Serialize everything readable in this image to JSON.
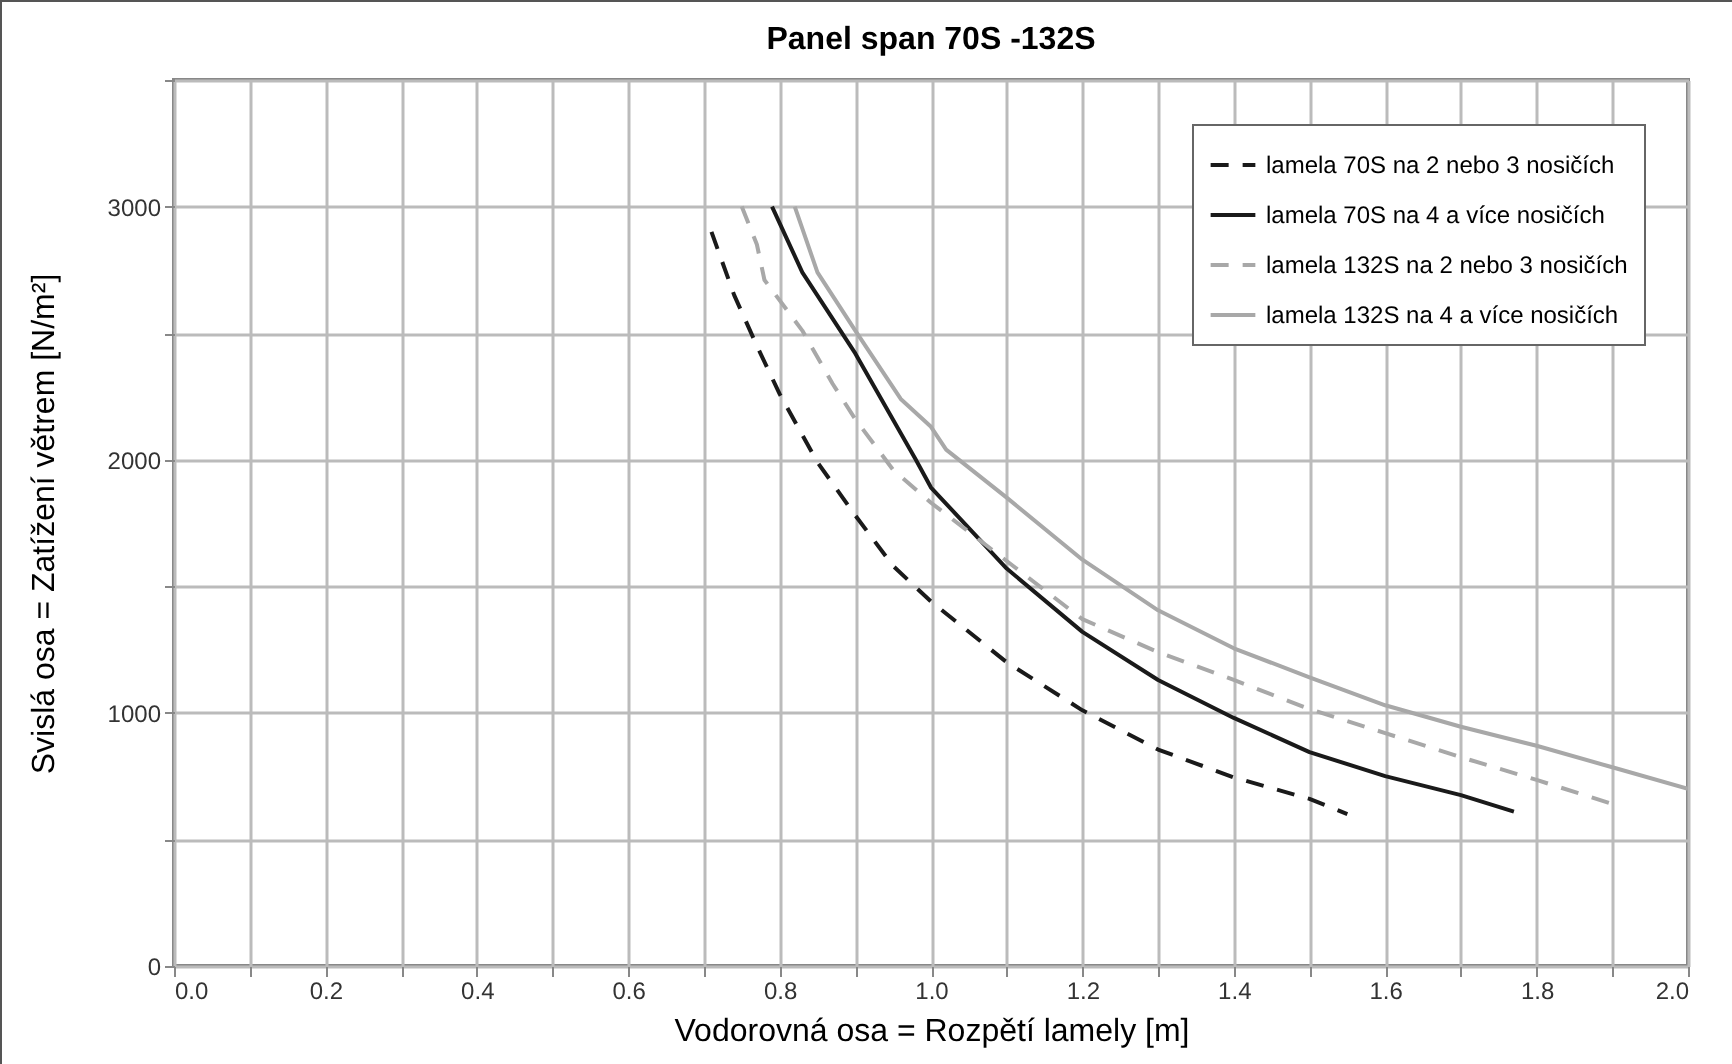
{
  "chart_data": {
    "type": "line",
    "title": "Panel span 70S -132S",
    "xlabel": "Vodorovná osa = Rozpětí lamely [m]",
    "ylabel": "Svislá osa = Zatížení větrem [N/m²]",
    "xlim": [
      0,
      2
    ],
    "ylim": [
      0,
      3500
    ],
    "xticks": [
      {
        "value": 0,
        "label": "0.0"
      },
      {
        "value": 0.1,
        "label": null
      },
      {
        "value": 0.2,
        "label": "0.2"
      },
      {
        "value": 0.3,
        "label": null
      },
      {
        "value": 0.4,
        "label": "0.4"
      },
      {
        "value": 0.5,
        "label": null
      },
      {
        "value": 0.6,
        "label": "0.6"
      },
      {
        "value": 0.7,
        "label": null
      },
      {
        "value": 0.8,
        "label": "0.8"
      },
      {
        "value": 0.9,
        "label": null
      },
      {
        "value": 1,
        "label": "1.0"
      },
      {
        "value": 1.1,
        "label": null
      },
      {
        "value": 1.2,
        "label": "1.2"
      },
      {
        "value": 1.3,
        "label": null
      },
      {
        "value": 1.4,
        "label": "1.4"
      },
      {
        "value": 1.5,
        "label": null
      },
      {
        "value": 1.6,
        "label": "1.6"
      },
      {
        "value": 1.7,
        "label": null
      },
      {
        "value": 1.8,
        "label": "1.8"
      },
      {
        "value": 1.9,
        "label": null
      },
      {
        "value": 2,
        "label": "2.0"
      }
    ],
    "yticks": [
      0,
      {
        "value": 500,
        "label": null
      },
      1000,
      {
        "value": 1500,
        "label": null
      },
      2000,
      {
        "value": 2500,
        "label": null
      },
      3000,
      {
        "value": 3500,
        "label": null
      }
    ],
    "grid": true,
    "legend": "top right",
    "marker": "none",
    "series": [
      {
        "name": "lamela 70S na 2 nebo 3 nosičích",
        "color": "#1a1a1a",
        "line_style": "dashed",
        "x": [
          0.71,
          0.74,
          0.77,
          0.8,
          0.85,
          0.9,
          0.95,
          1.0,
          1.1,
          1.2,
          1.3,
          1.4,
          1.5,
          1.55
        ],
        "values": [
          2900,
          2650,
          2450,
          2260,
          1990,
          1780,
          1580,
          1440,
          1200,
          1010,
          855,
          745,
          660,
          600
        ]
      },
      {
        "name": "lamela 70S na 4 a více nosičích",
        "color": "#1a1a1a",
        "line_style": "solid",
        "x": [
          0.79,
          0.83,
          0.9,
          0.98,
          1.0,
          1.1,
          1.2,
          1.3,
          1.4,
          1.5,
          1.6,
          1.7,
          1.77
        ],
        "values": [
          3000,
          2740,
          2420,
          2000,
          1890,
          1570,
          1320,
          1130,
          980,
          845,
          750,
          675,
          610
        ]
      },
      {
        "name": "lamela 132S na 2 nebo 3 nosičích",
        "color": "#a8a8a8",
        "line_style": "dashed",
        "x": [
          0.75,
          0.77,
          0.78,
          0.83,
          0.87,
          0.9,
          0.95,
          1.0,
          1.1,
          1.2,
          1.3,
          1.4,
          1.5,
          1.6,
          1.7,
          1.8,
          1.9
        ],
        "values": [
          3000,
          2850,
          2710,
          2510,
          2300,
          2160,
          1960,
          1830,
          1600,
          1370,
          1240,
          1130,
          1015,
          920,
          825,
          735,
          640
        ]
      },
      {
        "name": "lamela 132S na 4 a více nosičích",
        "color": "#a8a8a8",
        "line_style": "solid",
        "x": [
          0.82,
          0.85,
          0.9,
          0.96,
          1.0,
          1.02,
          1.1,
          1.2,
          1.3,
          1.4,
          1.5,
          1.6,
          1.7,
          1.8,
          1.9,
          2.0
        ],
        "values": [
          3000,
          2740,
          2510,
          2240,
          2130,
          2040,
          1850,
          1605,
          1405,
          1255,
          1140,
          1030,
          945,
          870,
          785,
          700
        ]
      }
    ]
  }
}
